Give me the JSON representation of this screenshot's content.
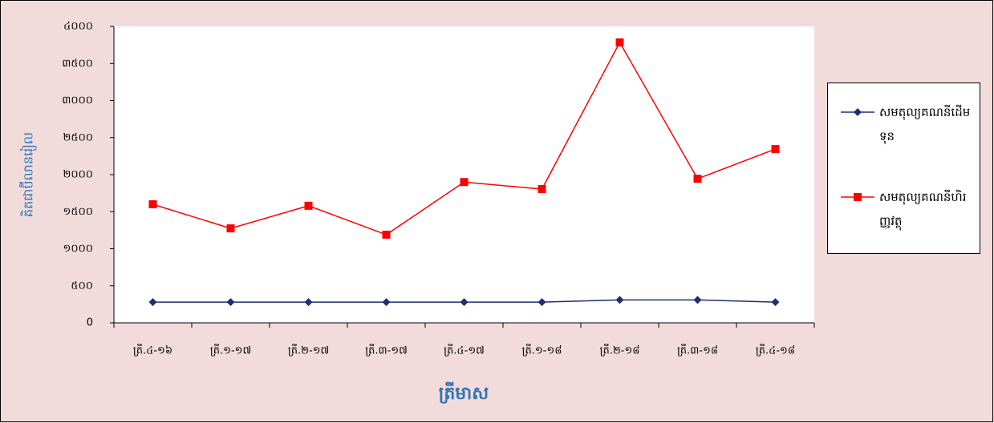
{
  "chart_data": {
    "type": "line",
    "ylabel": "គិតជាប៊ីលានរៀល",
    "xlabel": "ត្រីមាស",
    "categories": [
      "ត្រី.៤-១៦",
      "ត្រី.១-១៧",
      "ត្រី.២-១៧",
      "ត្រី.៣-១៧",
      "ត្រី.៤-១៧",
      "ត្រី.១-១៨",
      "ត្រី.២-១៨",
      "ត្រី.៣-១៨",
      "ត្រី.៤-១៨"
    ],
    "series": [
      {
        "name": "សមតុល្យគណនីដើមទុន",
        "color": "#1f2f6e",
        "marker": "diamond",
        "values": [
          280,
          280,
          280,
          280,
          280,
          280,
          310,
          310,
          280
        ]
      },
      {
        "name": "សមតុល្យគណនីហិរញ្ញវត្ថុ",
        "color": "#ff0000",
        "marker": "square",
        "values": [
          1600,
          1275,
          1580,
          1190,
          1900,
          1805,
          3785,
          1945,
          2345
        ]
      }
    ],
    "ylim": [
      0,
      4000
    ],
    "yticks": [
      0,
      {
        "value": 500,
        "label": "៥០០"
      },
      {
        "value": 1000,
        "label": "១០០០"
      },
      {
        "value": 1500,
        "label": "១៥០០"
      },
      {
        "value": 2000,
        "label": "២០០០"
      },
      {
        "value": 2500,
        "label": "២៥០០"
      },
      {
        "value": 3000,
        "label": "៣០០០"
      },
      {
        "value": 3500,
        "label": "៣៥០០"
      },
      {
        "value": 4000,
        "label": "៤០០០"
      }
    ],
    "grid": false,
    "legend": "right"
  }
}
